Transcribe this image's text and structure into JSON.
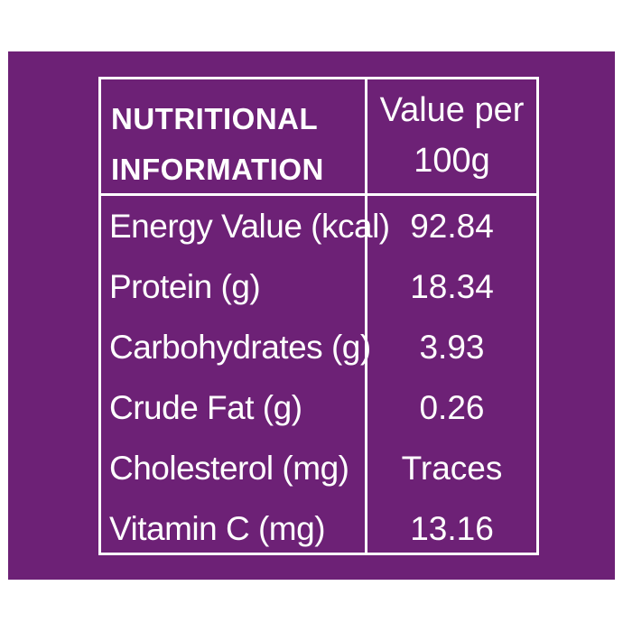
{
  "colors": {
    "panel_background": "#6d2176",
    "text_and_lines": "#ffffff",
    "page_background": "#ffffff"
  },
  "table": {
    "header": {
      "left": "NUTRITIONAL\nINFORMATION",
      "right": "Value per\n100g"
    },
    "rows": [
      {
        "label": "Energy Value (kcal)",
        "value": "92.84"
      },
      {
        "label": "Protein (g)",
        "value": "18.34"
      },
      {
        "label": "Carbohydrates (g)",
        "value": "3.93"
      },
      {
        "label": "Crude Fat (g)",
        "value": "0.26"
      },
      {
        "label": "Cholesterol (mg)",
        "value": "Traces"
      },
      {
        "label": "Vitamin C (mg)",
        "value": "13.16"
      }
    ]
  }
}
